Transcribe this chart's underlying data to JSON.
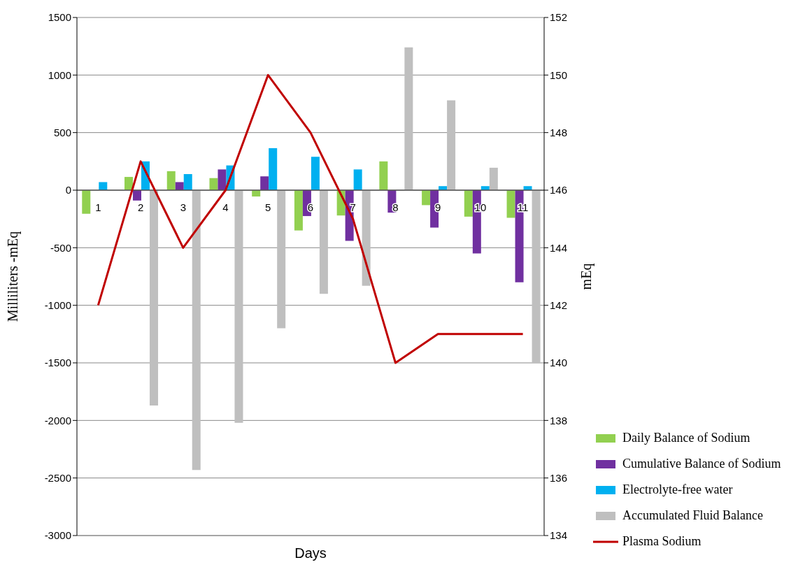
{
  "chart_data": {
    "type": "bar",
    "xlabel": "Days",
    "ylabel": "Milliliters -mEq",
    "y2label": "mEq",
    "categories": [
      "1",
      "2",
      "3",
      "4",
      "5",
      "6",
      "7",
      "8",
      "9",
      "10",
      "11"
    ],
    "series": [
      {
        "name": "Daily Balance of Sodium",
        "color": "#92d050",
        "values": [
          -205,
          115,
          165,
          105,
          -55,
          -350,
          -220,
          250,
          -130,
          -230,
          -240
        ]
      },
      {
        "name": "Cumulative Balance of Sodium",
        "color": "#7030a0",
        "values": [
          null,
          -90,
          70,
          180,
          120,
          -225,
          -440,
          -195,
          -325,
          -550,
          -800
        ]
      },
      {
        "name": "Electrolyte-free water",
        "color": "#00b0f0",
        "values": [
          70,
          250,
          140,
          215,
          365,
          290,
          180,
          null,
          35,
          35,
          35
        ]
      },
      {
        "name": "Accumulated Fluid Balance",
        "color": "#bfbfbf",
        "values": [
          null,
          -1870,
          -2430,
          -2020,
          -1200,
          -900,
          -830,
          1240,
          780,
          195,
          -1500
        ]
      },
      {
        "name": "Plasma Sodium",
        "color": "#c00000",
        "type": "line",
        "axis": "y2",
        "values": [
          142,
          147,
          144,
          146,
          150,
          148,
          145,
          140,
          141,
          141,
          141
        ]
      }
    ],
    "ylim": [
      -3000,
      1500
    ],
    "yticks": [
      -3000,
      -2500,
      -2000,
      -1500,
      -1000,
      -500,
      0,
      500,
      1000,
      1500
    ],
    "y2lim": [
      134,
      152
    ],
    "y2ticks": [
      134,
      136,
      138,
      140,
      142,
      144,
      146,
      148,
      150,
      152
    ],
    "grid": "y",
    "legend": "right",
    "marker": "none"
  }
}
